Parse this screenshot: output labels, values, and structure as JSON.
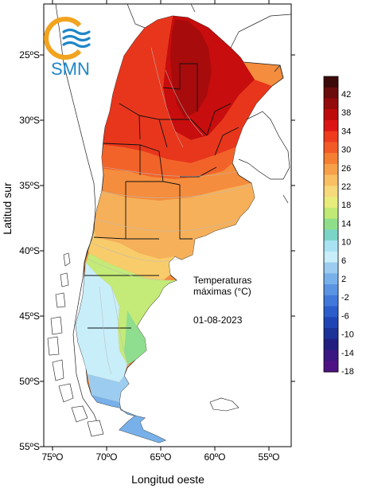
{
  "logo": {
    "text": "SMN",
    "colors": {
      "orange": "#f2a31f",
      "blue": "#1f86c8"
    }
  },
  "axes": {
    "xlabel": "Longitud oeste",
    "ylabel": "Latitud sur",
    "x_ticks": [
      "75ºO",
      "70ºO",
      "65ºO",
      "60ºO",
      "55ºO"
    ],
    "y_ticks": [
      "25ºS",
      "30ºS",
      "35ºS",
      "40ºS",
      "45ºS",
      "50ºS",
      "55ºS"
    ]
  },
  "annotation": {
    "line1": "Temperaturas",
    "line2": "máximas (°C)",
    "date": "01-08-2023"
  },
  "colorbar": {
    "labels": [
      "42",
      "38",
      "34",
      "30",
      "26",
      "22",
      "18",
      "14",
      "10",
      "6",
      "2",
      "-2",
      "-6",
      "-10",
      "-14",
      "-18"
    ],
    "colors": [
      "#3d0a0a",
      "#6a0d0d",
      "#940b0b",
      "#bd0b0b",
      "#dd1414",
      "#ee3b1e",
      "#f25a26",
      "#f47f33",
      "#f6a04a",
      "#f8bf63",
      "#f6d97a",
      "#e8ec7a",
      "#c0ea74",
      "#8fdf8a",
      "#7bd4c8",
      "#a9e3f3",
      "#c8eefa",
      "#9ccdf0",
      "#78b1ea",
      "#5a94e2",
      "#4178da",
      "#2c5dcb",
      "#1f44b3",
      "#1c3297",
      "#231f80",
      "#3a1781",
      "#4f1283"
    ]
  },
  "map": {
    "title": "",
    "lon_range": [
      -75,
      -53
    ],
    "lat_range": [
      -55,
      -21
    ],
    "zones": [
      {
        "name": "north-hot",
        "color": "#c70d0d"
      },
      {
        "name": "north",
        "color": "#e8361c"
      },
      {
        "name": "center-north",
        "color": "#f2632a"
      },
      {
        "name": "center",
        "color": "#f48d3d"
      },
      {
        "name": "pampas",
        "color": "#f6b05a"
      },
      {
        "name": "north-patagonia",
        "color": "#f8cc6a"
      },
      {
        "name": "patagonia-coast",
        "color": "#c4ea78"
      },
      {
        "name": "patagonia-mid",
        "color": "#a5e0e6"
      },
      {
        "name": "patagonia-south",
        "color": "#8cc3ee"
      },
      {
        "name": "tierra-del-fuego",
        "color": "#6ea6e6"
      }
    ]
  }
}
